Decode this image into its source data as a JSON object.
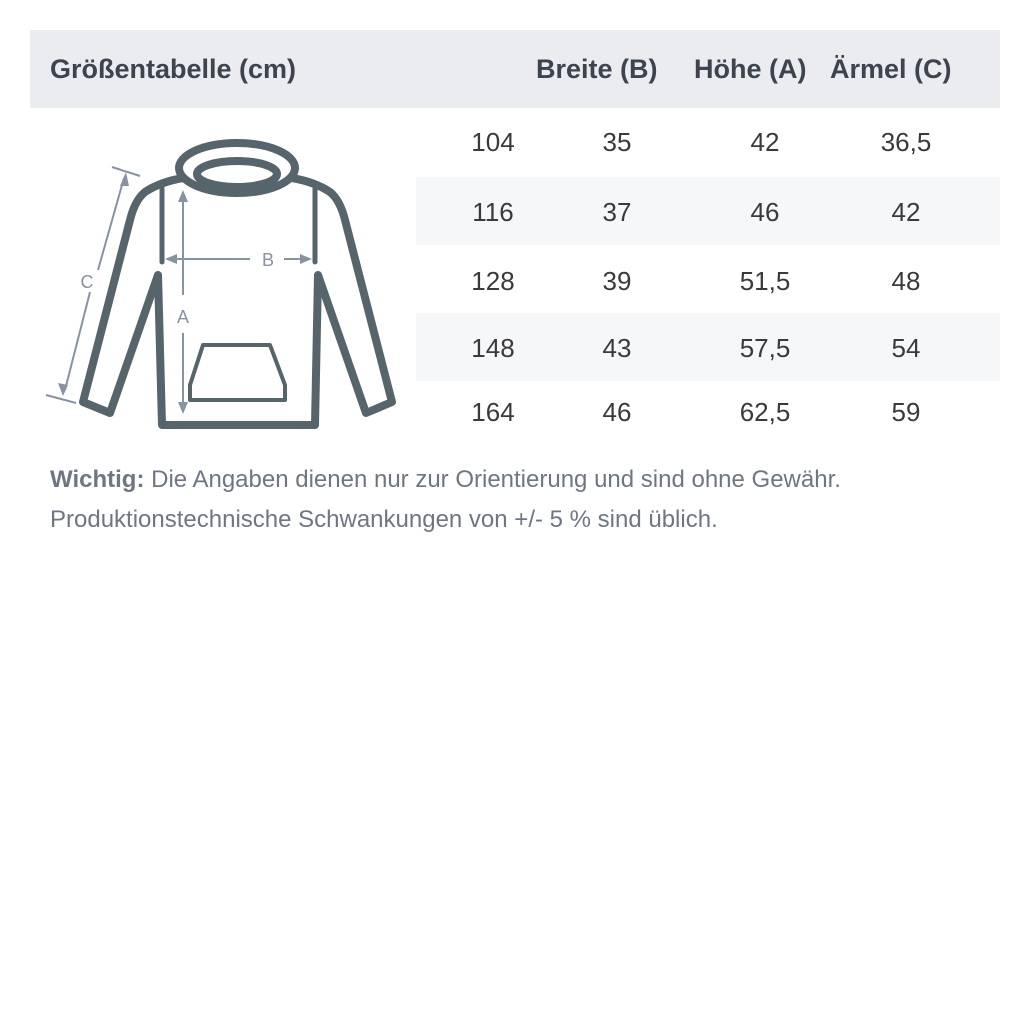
{
  "header": {
    "title": "Größentabelle (cm)",
    "columns": [
      "Breite (B)",
      "Höhe (A)",
      "Ärmel (C)"
    ]
  },
  "rows": [
    {
      "size": "104",
      "breite": "35",
      "hoehe": "42",
      "aermel": "36,5"
    },
    {
      "size": "116",
      "breite": "37",
      "hoehe": "46",
      "aermel": "42"
    },
    {
      "size": "128",
      "breite": "39",
      "hoehe": "51,5",
      "aermel": "48"
    },
    {
      "size": "148",
      "breite": "43",
      "hoehe": "57,5",
      "aermel": "54"
    },
    {
      "size": "164",
      "breite": "46",
      "hoehe": "62,5",
      "aermel": "59"
    }
  ],
  "diagram": {
    "label_a": "A",
    "label_b": "B",
    "label_c": "C"
  },
  "note": {
    "label": "Wichtig:",
    "line1": "Die Angaben dienen nur zur Orientierung und sind ohne Gewähr.",
    "line2": "Produktionstechnische Schwankungen von +/- 5 % sind üblich."
  },
  "colors": {
    "outline": "#56646b",
    "measure": "#8793a0",
    "header_bg": "#ebecf0"
  }
}
